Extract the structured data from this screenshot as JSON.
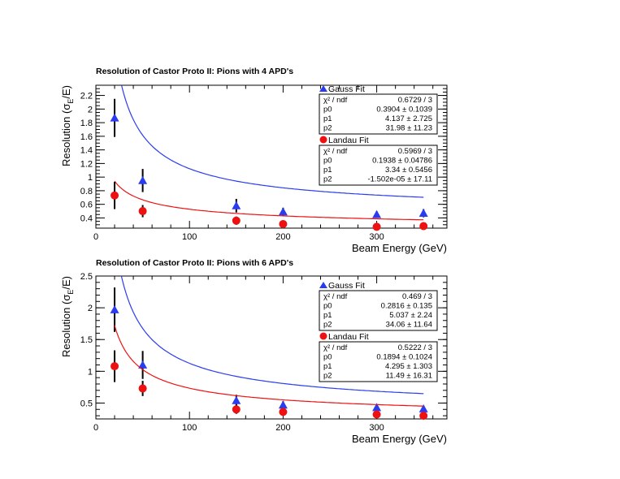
{
  "chart_data": [
    {
      "type": "scatter",
      "title": "Resolution of Castor Proto II: Pions with 4 APD's",
      "xlabel": "Beam Energy (GeV)",
      "ylabel_main": "Resolution (σ",
      "ylabel_sub": "E",
      "ylabel_tail": "/E)",
      "xlim": [
        0,
        375
      ],
      "ylim": [
        0.25,
        2.35
      ],
      "xticks": [
        0,
        100,
        200,
        300
      ],
      "yticks": [
        0.4,
        0.6,
        0.8,
        1,
        1.2,
        1.4,
        1.6,
        1.8,
        2,
        2.2
      ],
      "ytick_labels": [
        "0.4",
        "0.6",
        "0.8",
        "1",
        "1.2",
        "1.4",
        "1.6",
        "1.8",
        "2",
        "2.2"
      ],
      "series": [
        {
          "name": "Gauss Fit",
          "marker": "triangle",
          "color": "#2a3cf0",
          "x": [
            20,
            50,
            150,
            200,
            300,
            350
          ],
          "y": [
            1.87,
            0.95,
            0.58,
            0.49,
            0.45,
            0.47
          ],
          "yerr": [
            0.28,
            0.17,
            0.1,
            0.06,
            0.05,
            0.06
          ],
          "fit": {
            "p0": 0.3904,
            "p1": 4.137,
            "p2": 31.98
          }
        },
        {
          "name": "Landau Fit",
          "marker": "circle",
          "color": "#ee1111",
          "x": [
            20,
            50,
            150,
            200,
            300,
            350
          ],
          "y": [
            0.73,
            0.5,
            0.36,
            0.31,
            0.27,
            0.28
          ],
          "yerr": [
            0.2,
            0.09,
            0.06,
            0.03,
            0.03,
            0.03
          ],
          "fit": {
            "p0": 0.1938,
            "p1": 3.34,
            "p2": 0
          }
        }
      ],
      "stat_boxes": [
        {
          "title": "Gauss Fit",
          "rows": [
            {
              "label": "χ² / ndf",
              "value": "0.6729 /  3"
            },
            {
              "label": "p0",
              "value": "0.3904 ±  0.1039"
            },
            {
              "label": "p1",
              "value": "4.137 ± 2.725"
            },
            {
              "label": "p2",
              "value": "31.98  ± 11.23"
            }
          ]
        },
        {
          "title": "Landau Fit",
          "rows": [
            {
              "label": "χ² / ndf",
              "value": "0.5969 / 3"
            },
            {
              "label": "p0",
              "value": "0.1938 ± 0.04786"
            },
            {
              "label": "p1",
              "value": "3.34 ± 0.5456"
            },
            {
              "label": "p2",
              "value": "-1.502e-05 ± 17.11"
            }
          ]
        }
      ]
    },
    {
      "type": "scatter",
      "title": "Resolution of Castor Proto II: Pions with 6 APD's",
      "xlabel": "Beam Energy (GeV)",
      "ylabel_main": "Resolution (σ",
      "ylabel_sub": "E",
      "ylabel_tail": "/E)",
      "xlim": [
        0,
        375
      ],
      "ylim": [
        0.25,
        2.5
      ],
      "xticks": [
        0,
        100,
        200,
        300
      ],
      "yticks": [
        0.5,
        1,
        1.5,
        2,
        2.5
      ],
      "ytick_labels": [
        "0.5",
        "1",
        "1.5",
        "2",
        "2.5"
      ],
      "series": [
        {
          "name": "Gauss Fit",
          "marker": "triangle",
          "color": "#2a3cf0",
          "x": [
            20,
            50,
            150,
            200,
            300,
            350
          ],
          "y": [
            1.97,
            1.1,
            0.54,
            0.47,
            0.43,
            0.41
          ],
          "yerr": [
            0.35,
            0.22,
            0.09,
            0.06,
            0.05,
            0.05
          ],
          "fit": {
            "p0": 0.2816,
            "p1": 5.037,
            "p2": 34.06
          }
        },
        {
          "name": "Landau Fit",
          "marker": "circle",
          "color": "#ee1111",
          "x": [
            20,
            50,
            150,
            200,
            300,
            350
          ],
          "y": [
            1.08,
            0.73,
            0.4,
            0.36,
            0.32,
            0.3
          ],
          "yerr": [
            0.25,
            0.12,
            0.07,
            0.04,
            0.03,
            0.03
          ],
          "fit": {
            "p0": 0.1894,
            "p1": 4.295,
            "p2": 11.49
          }
        }
      ],
      "stat_boxes": [
        {
          "title": "Gauss Fit",
          "rows": [
            {
              "label": "χ² / ndf",
              "value": "0.469  /  3"
            },
            {
              "label": "p0",
              "value": "0.2816 ±  0.135"
            },
            {
              "label": "p1",
              "value": "5.037 ±  2.24"
            },
            {
              "label": "p2",
              "value": "34.06 ± 11.64"
            }
          ]
        },
        {
          "title": "Landau Fit",
          "rows": [
            {
              "label": "χ² / ndf",
              "value": "0.5222 / 3"
            },
            {
              "label": "p0",
              "value": "0.1894 ± 0.1024"
            },
            {
              "label": "p1",
              "value": "4.295 ± 1.303"
            },
            {
              "label": "p2",
              "value": "11.49 ± 16.31"
            }
          ]
        }
      ]
    }
  ]
}
